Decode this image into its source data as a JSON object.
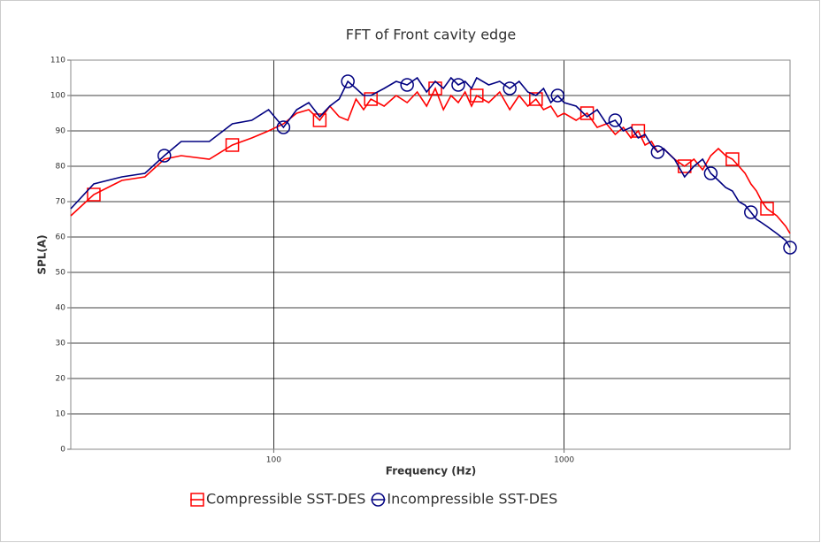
{
  "chart_data": {
    "type": "line",
    "title": "FFT of Front cavity edge",
    "x_label": "Frequency (Hz)",
    "y_label": "SPL(A)",
    "x_log": true,
    "grid": true,
    "legend": "bottom",
    "x": [
      20,
      24,
      30,
      36,
      42,
      48,
      60,
      72,
      84,
      96,
      108,
      120,
      132,
      144,
      156,
      168,
      180,
      192,
      204,
      216,
      240,
      264,
      288,
      312,
      336,
      360,
      384,
      408,
      432,
      456,
      480,
      500,
      550,
      600,
      650,
      700,
      750,
      800,
      850,
      900,
      950,
      1000,
      1100,
      1200,
      1300,
      1400,
      1500,
      1600,
      1700,
      1800,
      1900,
      2000,
      2100,
      2200,
      2400,
      2600,
      2800,
      3000,
      3200,
      3400,
      3600,
      3800,
      4000,
      4200,
      4400,
      4600,
      4800,
      5000,
      5400,
      5800,
      6000
    ],
    "series": [
      {
        "name": "Compressible SST-DES",
        "color": "#ff0000",
        "marker": "square",
        "values": [
          66,
          72,
          76,
          77,
          82,
          83,
          82,
          86,
          88,
          90,
          92,
          95,
          96,
          93,
          97,
          94,
          93,
          99,
          96,
          99,
          97,
          100,
          98,
          101,
          97,
          102,
          96,
          100,
          98,
          101,
          97,
          100,
          98,
          101,
          96,
          100,
          97,
          99,
          96,
          97,
          94,
          95,
          93,
          95,
          91,
          92,
          89,
          91,
          88,
          90,
          86,
          87,
          84,
          85,
          82,
          80,
          82,
          79,
          83,
          85,
          83,
          82,
          80,
          78,
          75,
          73,
          70,
          68,
          66,
          63,
          61
        ]
      },
      {
        "name": "Incompressible SST-DES",
        "color": "#000080",
        "marker": "circle",
        "values": [
          68,
          75,
          77,
          78,
          83,
          87,
          87,
          92,
          93,
          96,
          91,
          96,
          98,
          94,
          97,
          99,
          104,
          102,
          100,
          100,
          102,
          104,
          103,
          105,
          101,
          104,
          102,
          105,
          103,
          104,
          102,
          105,
          103,
          104,
          102,
          104,
          101,
          100,
          102,
          98,
          100,
          98,
          97,
          94,
          96,
          92,
          93,
          90,
          91,
          88,
          89,
          86,
          84,
          85,
          82,
          77,
          80,
          82,
          78,
          76,
          74,
          73,
          70,
          69,
          67,
          65,
          64,
          63,
          61,
          59,
          57
        ]
      }
    ],
    "xlim": [
      20,
      6000
    ],
    "xticks": [
      100,
      1000
    ],
    "ylim": [
      0,
      110
    ],
    "yticks": [
      0,
      10,
      20,
      30,
      40,
      50,
      60,
      70,
      80,
      90,
      100,
      110
    ]
  }
}
